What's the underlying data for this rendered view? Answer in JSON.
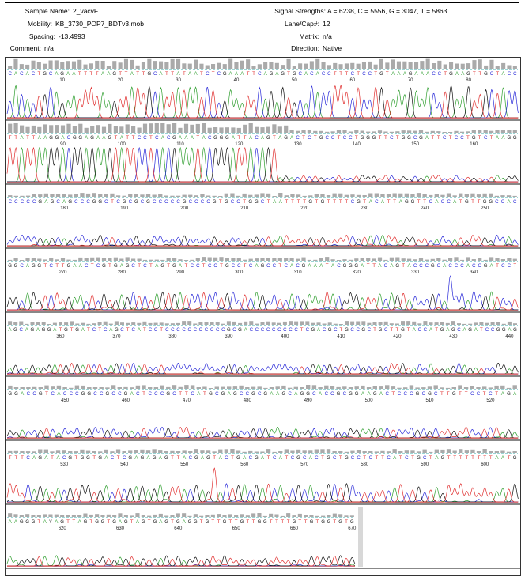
{
  "header": {
    "sample_name": {
      "label": "Sample Name:",
      "value": "2_vacvF"
    },
    "mobility": {
      "label": "Mobility:",
      "value": "KB_3730_POP7_BDTv3.mob"
    },
    "spacing": {
      "label": "Spacing:",
      "value": "-13.4993"
    },
    "comment": {
      "label": "Comment:",
      "value": "n/a"
    },
    "signal_strengths": {
      "label": "Signal Strengths:",
      "value": "A = 6238, C = 5556, G = 3047, T = 5863"
    },
    "lane_cap": {
      "label": "Lane/Cap#:",
      "value": "12"
    },
    "matrix": {
      "label": "Matrix:",
      "value": "n/a"
    },
    "direction": {
      "label": "Direction:",
      "value": "Native"
    }
  },
  "chart_data": {
    "type": "line",
    "base_colors": {
      "A": "#2e9e2e",
      "C": "#2a2ad8",
      "G": "#111111",
      "T": "#e03030"
    },
    "rows": [
      {
        "seq": "CACACTGCAGAATTTTAAGTTATTGCATTATAATCTCGAAATTCAGAGTGCACACCTTTCTCCTGTAAAGAAACCTGAAGTTGCTACC",
        "ticks": [
          10,
          20,
          30,
          40,
          50,
          60,
          70,
          80
        ],
        "quality": "high",
        "peak": "high"
      },
      {
        "seq": "TTATTAAGGACGGAGAAGTATTCCTCACGAAATACGGGATTACAGTAGACTCTGCCTCCTGGGTTCTGGCGATTCTCCTGTCTAAGG",
        "ticks": [
          90,
          100,
          110,
          120,
          130,
          140,
          150,
          160,
          170
        ],
        "quality": "mixed",
        "peak": "saturated"
      },
      {
        "seq": "CCCCCGAGCAGCCCGGCTCGCGCGCCCCCGCCCCGTGCCTGGCTAATTTTGTGTTTTCGTACATTAGGTTCACCATGTTGGCCAC",
        "ticks": [
          180,
          190,
          200,
          210,
          220,
          230,
          240,
          250,
          260
        ],
        "quality": "low",
        "peak": "low"
      },
      {
        "seq": "GGCAGGTCTTGAACTCGTGAGCTCTAGTGATCCTCCTGCCTCAGCCTCACGAAATACGGGATTACAGTACCCGCACCCACCGATCCT",
        "ticks": [
          270,
          280,
          290,
          300,
          310,
          320,
          330,
          340,
          350
        ],
        "quality": "low",
        "peak": "mid"
      },
      {
        "seq": "AGCAGAGGATGTGATCTCAGCTCATCCTCCCCCCCCCCCGCGACCCCCCCCCTCGACGCTGCCGCTGCTTGTACCATGAGCAGATCCGGAG",
        "ticks": [
          360,
          370,
          380,
          390,
          400,
          410,
          420,
          430,
          440
        ],
        "quality": "low",
        "peak": "low"
      },
      {
        "seq": "GGACCGTCACCCGGCCGCCGACTCCCGCTTCATGCGAGCCGCGAAGCAGGCACCGCGGAAGACTCCCGCGCTTGTTCCTCTAGA",
        "ticks": [
          450,
          460,
          470,
          480,
          490,
          500,
          510,
          520
        ],
        "quality": "low",
        "peak": "low"
      },
      {
        "seq": "TTTCAGATACGTGGTGACTCGAGAGAGTTACGAGTACTGACGATCATCGCACTGCTGCCTCTTCATCTGCTAGTTTTTTTTAATG",
        "ticks": [
          530,
          540,
          550,
          560,
          570,
          580,
          590,
          600,
          610
        ],
        "quality": "low",
        "peak": "mid"
      },
      {
        "seq": "AAGGGTAYAGTTAGTGGTGAGTAGTGAGTGAGGTGTTGTTGTTGGTTTTGTTGTGGTGTG",
        "ticks": [
          620,
          630,
          640,
          650,
          660,
          670
        ],
        "quality": "low",
        "peak": "low"
      }
    ]
  }
}
